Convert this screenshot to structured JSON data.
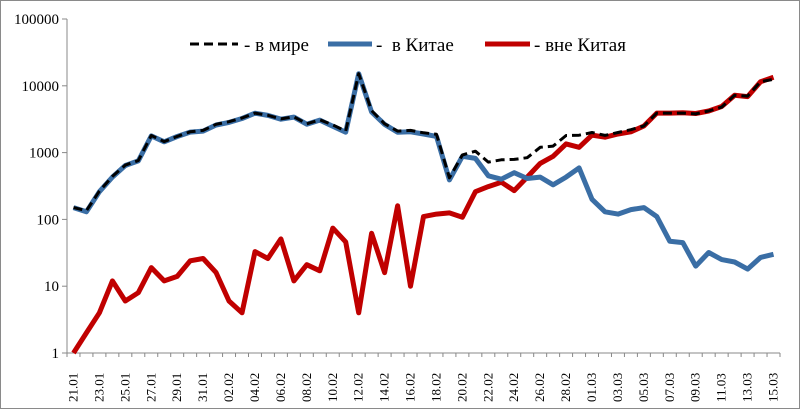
{
  "chart_data": {
    "type": "line",
    "title": "",
    "xlabel": "",
    "ylabel": "",
    "yscale": "log",
    "ylim": [
      1,
      100000
    ],
    "yticks": [
      "100000",
      "10000",
      "1000",
      "100",
      "10",
      "1"
    ],
    "grid": false,
    "legend_position": "top",
    "x": [
      "21.01",
      "22.01",
      "23.01",
      "24.01",
      "25.01",
      "26.01",
      "27.01",
      "28.01",
      "29.01",
      "30.01",
      "31.01",
      "01.02",
      "02.02",
      "03.02",
      "04.02",
      "05.02",
      "06.02",
      "07.02",
      "08.02",
      "09.02",
      "10.02",
      "11.02",
      "12.02",
      "13.02",
      "14.02",
      "15.02",
      "16.02",
      "17.02",
      "18.02",
      "19.02",
      "20.02",
      "21.02",
      "22.02",
      "23.02",
      "24.02",
      "25.02",
      "26.02",
      "27.02",
      "28.02",
      "29.02",
      "01.03",
      "02.03",
      "03.03",
      "04.03",
      "05.03",
      "06.03",
      "07.03",
      "08.03",
      "09.03",
      "10.03",
      "11.03",
      "12.03",
      "13.03",
      "14.03",
      "15.03"
    ],
    "x_tick_labels": [
      "21.01",
      "23.01",
      "25.01",
      "27.01",
      "29.01",
      "31.01",
      "02.02",
      "04.02",
      "06.02",
      "08.02",
      "10.02",
      "12.02",
      "14.02",
      "16.02",
      "18.02",
      "20.02",
      "22.02",
      "24.02",
      "26.02",
      "28.02",
      "01.03",
      "03.03",
      "05.03",
      "07.03",
      "09.03",
      "11.03",
      "13.03",
      "15.03"
    ],
    "series": [
      {
        "name": "- в мире",
        "color": "#000000",
        "style": "dashed",
        "values": [
          150,
          135,
          265,
          440,
          650,
          760,
          1800,
          1460,
          1750,
          2050,
          2150,
          2650,
          2900,
          3300,
          3900,
          3620,
          3200,
          3440,
          2700,
          3100,
          2600,
          2100,
          15200,
          4250,
          2700,
          2100,
          2150,
          1980,
          1880,
          420,
          920,
          1050,
          720,
          780,
          790,
          840,
          1200,
          1250,
          1800,
          1820,
          2000,
          1810,
          2000,
          2200,
          2500,
          3900,
          3900,
          3900,
          3800,
          4200,
          4800,
          7200,
          7000,
          11500,
          12500
        ]
      },
      {
        "name": "-  в Китае",
        "color": "#3a6ea5",
        "style": "solid",
        "values": [
          150,
          130,
          260,
          430,
          640,
          750,
          1780,
          1450,
          1740,
          2030,
          2100,
          2590,
          2830,
          3240,
          3890,
          3600,
          3160,
          3400,
          2660,
          3070,
          2480,
          2020,
          15150,
          4050,
          2640,
          2010,
          2050,
          1900,
          1750,
          390,
          880,
          820,
          450,
          400,
          500,
          410,
          430,
          330,
          430,
          590,
          200,
          130,
          120,
          140,
          150,
          110,
          47,
          45,
          20,
          32,
          25,
          23,
          18,
          27,
          30
        ]
      },
      {
        "name": "- вне Китая",
        "color": "#c00000",
        "style": "solid",
        "values": [
          1,
          2,
          4,
          12,
          6,
          8,
          19,
          12,
          14,
          24,
          26,
          16,
          6,
          4,
          33,
          26,
          51,
          12,
          21,
          17,
          74,
          46,
          4,
          62,
          16,
          160,
          10,
          110,
          120,
          125,
          108,
          260,
          310,
          360,
          270,
          430,
          690,
          880,
          1350,
          1200,
          1830,
          1700,
          1900,
          2050,
          2500,
          3900,
          3900,
          3950,
          3850,
          4200,
          4900,
          7200,
          6900,
          11500,
          13400
        ]
      }
    ]
  }
}
